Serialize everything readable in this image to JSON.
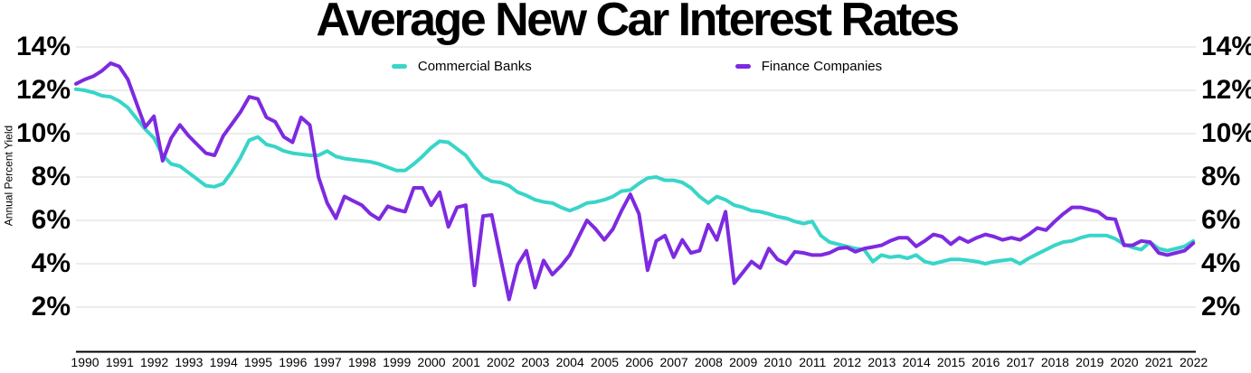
{
  "title": "Average New Car Interest Rates",
  "y_axis": {
    "label": "Annual Percent Yield",
    "ticks": [
      "14%",
      "12%",
      "10%",
      "8%",
      "6%",
      "4%",
      "2%"
    ],
    "tick_values": [
      14,
      12,
      10,
      8,
      6,
      4,
      2
    ]
  },
  "x_axis": {
    "years": [
      "1990",
      "1991",
      "1992",
      "1993",
      "1994",
      "1995",
      "1996",
      "1997",
      "1998",
      "1999",
      "2000",
      "2001",
      "2002",
      "2003",
      "2004",
      "2005",
      "2006",
      "2007",
      "2008",
      "2009",
      "2010",
      "2011",
      "2012",
      "2013",
      "2014",
      "2015",
      "2016",
      "2017",
      "2018",
      "2019",
      "2020",
      "2021",
      "2022"
    ]
  },
  "legend": {
    "items": [
      {
        "label": "Commercial Banks",
        "color": "#38d5c8"
      },
      {
        "label": "Finance Companies",
        "color": "#7d2ae0"
      }
    ]
  },
  "colors": {
    "grid": "#d9d9d9",
    "axis": "#000000",
    "commercial_banks": "#38d5c8",
    "finance_companies": "#7d2ae0"
  },
  "chart_data": {
    "type": "line",
    "title": "Average New Car Interest Rates",
    "ylabel": "Annual Percent Yield",
    "xlabel": "",
    "x_start": 1990,
    "x_step": 0.25,
    "x_range": [
      1990,
      2022.25
    ],
    "ylim": [
      2,
      14
    ],
    "y_gridlines": [
      2,
      4,
      6,
      8,
      10,
      12,
      14
    ],
    "grid": "horizontal-only",
    "legend_position": "top-center",
    "units": "percent, Annual Percent Yield, quarterly samples",
    "series": [
      {
        "name": "Commercial Banks",
        "color": "#38d5c8",
        "values": [
          12.05,
          12.0,
          11.9,
          11.75,
          11.7,
          11.5,
          11.2,
          10.7,
          10.2,
          9.8,
          9.0,
          8.6,
          8.5,
          8.2,
          7.9,
          7.6,
          7.55,
          7.7,
          8.25,
          8.9,
          9.7,
          9.85,
          9.5,
          9.4,
          9.2,
          9.1,
          9.05,
          9.0,
          9.0,
          9.2,
          8.95,
          8.85,
          8.8,
          8.75,
          8.7,
          8.6,
          8.45,
          8.3,
          8.3,
          8.6,
          8.95,
          9.35,
          9.65,
          9.6,
          9.3,
          9.0,
          8.45,
          8.0,
          7.8,
          7.75,
          7.6,
          7.3,
          7.15,
          6.95,
          6.85,
          6.8,
          6.6,
          6.45,
          6.6,
          6.8,
          6.85,
          6.95,
          7.1,
          7.35,
          7.4,
          7.7,
          7.95,
          8.0,
          7.85,
          7.85,
          7.75,
          7.5,
          7.1,
          6.8,
          7.1,
          6.95,
          6.7,
          6.6,
          6.45,
          6.4,
          6.3,
          6.17,
          6.1,
          5.95,
          5.85,
          5.95,
          5.3,
          5.0,
          4.9,
          4.8,
          4.7,
          4.65,
          4.1,
          4.4,
          4.3,
          4.35,
          4.25,
          4.4,
          4.1,
          4.0,
          4.1,
          4.2,
          4.2,
          4.15,
          4.1,
          4.0,
          4.1,
          4.15,
          4.2,
          4.0,
          4.25,
          4.45,
          4.65,
          4.85,
          5.0,
          5.05,
          5.2,
          5.3,
          5.3,
          5.3,
          5.15,
          4.9,
          4.75,
          4.65,
          5.0,
          4.7,
          4.6,
          4.7,
          4.8,
          5.05
        ]
      },
      {
        "name": "Finance Companies",
        "color": "#7d2ae0",
        "values": [
          12.3,
          12.5,
          12.65,
          12.9,
          13.25,
          13.1,
          12.5,
          11.4,
          10.3,
          10.8,
          8.75,
          9.8,
          10.4,
          9.9,
          9.5,
          9.1,
          9.0,
          9.9,
          10.45,
          11.0,
          11.7,
          11.6,
          10.75,
          10.55,
          9.85,
          9.6,
          10.75,
          10.4,
          8.0,
          6.8,
          6.1,
          7.1,
          6.9,
          6.7,
          6.3,
          6.05,
          6.65,
          6.5,
          6.4,
          7.5,
          7.5,
          6.7,
          7.3,
          5.7,
          6.6,
          6.7,
          3.0,
          6.2,
          6.25,
          4.3,
          2.35,
          3.95,
          4.6,
          2.9,
          4.15,
          3.5,
          3.9,
          4.4,
          5.2,
          6.0,
          5.6,
          5.1,
          5.6,
          6.45,
          7.2,
          6.3,
          3.7,
          5.05,
          5.3,
          4.3,
          5.1,
          4.5,
          4.6,
          5.8,
          5.1,
          6.4,
          3.1,
          3.6,
          4.1,
          3.8,
          4.7,
          4.2,
          4.0,
          4.55,
          4.5,
          4.4,
          4.4,
          4.5,
          4.7,
          4.75,
          4.55,
          4.7,
          4.77,
          4.85,
          5.05,
          5.2,
          5.2,
          4.8,
          5.05,
          5.35,
          5.25,
          4.9,
          5.2,
          5.0,
          5.2,
          5.35,
          5.25,
          5.1,
          5.2,
          5.1,
          5.35,
          5.65,
          5.55,
          5.95,
          6.3,
          6.6,
          6.6,
          6.5,
          6.4,
          6.1,
          6.05,
          4.85,
          4.85,
          5.05,
          5.0,
          4.5,
          4.4,
          4.5,
          4.6,
          4.95
        ]
      }
    ]
  }
}
